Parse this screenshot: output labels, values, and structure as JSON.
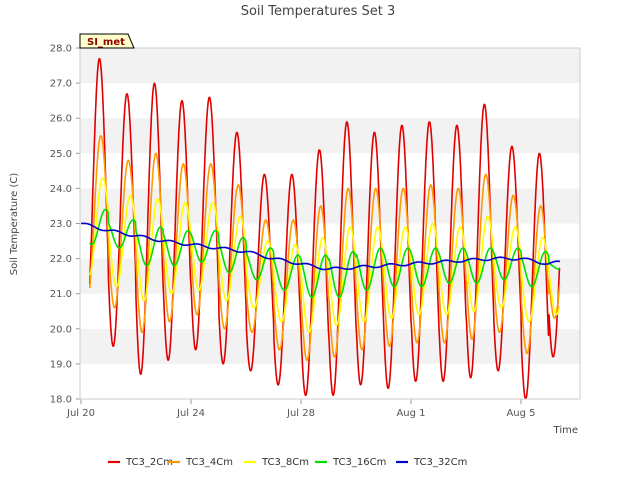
{
  "chart_data": {
    "type": "line",
    "title": "Soil Temperatures Set 3",
    "xlabel": "Time",
    "ylabel": "Soil Temperature (C)",
    "site_label": "SI_met",
    "ylim": [
      18.0,
      28.0
    ],
    "y_ticks": [
      "18.0",
      "19.0",
      "20.0",
      "21.0",
      "22.0",
      "23.0",
      "24.0",
      "25.0",
      "26.0",
      "27.0",
      "28.0"
    ],
    "x_ticks": [
      {
        "label": "Jul 20",
        "day": 0
      },
      {
        "label": "Jul 24",
        "day": 4
      },
      {
        "label": "Jul 28",
        "day": 8
      },
      {
        "label": "Aug 1",
        "day": 12
      },
      {
        "label": "Aug 5",
        "day": 16
      }
    ],
    "xlim_days": [
      0,
      18
    ],
    "grid": "alternating horizontal bands",
    "legend_position": "bottom",
    "series": [
      {
        "name": "TC3_2Cm",
        "color": "#e00000",
        "daily_min": [
          19.6,
          19.5,
          18.7,
          19.1,
          19.4,
          19.0,
          18.8,
          18.4,
          18.1,
          18.1,
          18.4,
          18.3,
          18.5,
          18.5,
          18.6,
          18.8,
          18.0,
          19.2
        ],
        "daily_max": [
          27.7,
          26.7,
          27.0,
          26.5,
          26.6,
          25.6,
          24.4,
          24.4,
          25.1,
          25.9,
          25.6,
          25.8,
          25.9,
          25.8,
          26.4,
          25.2,
          25.0,
          25.0
        ]
      },
      {
        "name": "TC3_4Cm",
        "color": "#ff9a00",
        "daily_min": [
          20.7,
          20.6,
          19.9,
          20.2,
          20.4,
          20.0,
          19.9,
          19.4,
          19.1,
          19.2,
          19.4,
          19.5,
          19.6,
          19.6,
          19.7,
          19.9,
          19.3,
          20.3
        ],
        "daily_max": [
          25.5,
          24.8,
          25.0,
          24.7,
          24.7,
          24.1,
          23.1,
          23.1,
          23.5,
          24.0,
          24.0,
          24.0,
          24.1,
          24.0,
          24.4,
          23.8,
          23.5,
          23.5
        ]
      },
      {
        "name": "TC3_8Cm",
        "color": "#ffff00",
        "daily_min": [
          21.5,
          21.2,
          20.8,
          21.0,
          21.1,
          20.8,
          20.6,
          20.2,
          19.9,
          20.1,
          20.2,
          20.3,
          20.4,
          20.4,
          20.5,
          20.6,
          20.2,
          20.4
        ],
        "daily_max": [
          24.3,
          23.8,
          23.7,
          23.6,
          23.6,
          23.2,
          22.5,
          22.4,
          22.6,
          22.9,
          22.9,
          22.9,
          23.0,
          22.9,
          23.2,
          22.9,
          22.6,
          22.5
        ]
      },
      {
        "name": "TC3_16Cm",
        "color": "#00e000",
        "daily_min": [
          22.4,
          22.3,
          21.8,
          21.8,
          21.9,
          21.6,
          21.4,
          21.1,
          20.9,
          20.9,
          21.1,
          21.2,
          21.2,
          21.3,
          21.3,
          21.4,
          21.2,
          21.7
        ],
        "daily_max": [
          23.4,
          23.1,
          22.9,
          22.8,
          22.8,
          22.6,
          22.3,
          22.1,
          22.1,
          22.2,
          22.3,
          22.3,
          22.3,
          22.3,
          22.3,
          22.3,
          22.2,
          21.9
        ]
      },
      {
        "name": "TC3_32Cm",
        "color": "#0000c8",
        "x": [
          0,
          1,
          2,
          3,
          4,
          5,
          6,
          7,
          8,
          9,
          10,
          11,
          12,
          13,
          14,
          15,
          16,
          17,
          17.4
        ],
        "values": [
          23.0,
          22.8,
          22.65,
          22.5,
          22.4,
          22.3,
          22.2,
          22.0,
          21.85,
          21.7,
          21.75,
          21.8,
          21.85,
          21.9,
          21.95,
          22.0,
          22.0,
          21.85,
          21.9
        ]
      }
    ]
  }
}
